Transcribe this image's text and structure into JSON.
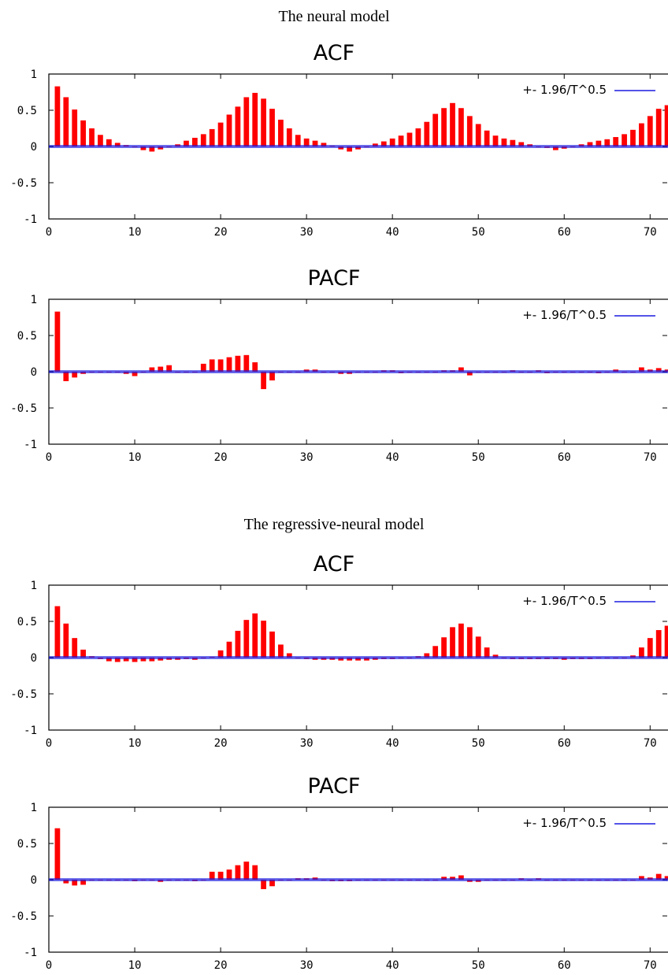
{
  "sections": [
    {
      "title": "The neural model"
    },
    {
      "title": "The regressive-neural model"
    }
  ],
  "colors": {
    "bar": "#ff0000",
    "band": "#1c1ce0",
    "axis": "#000000"
  },
  "chart_data": [
    {
      "type": "bar",
      "title": "ACF",
      "legend": "+- 1.96/T^0.5",
      "legend_position": "top-right",
      "ylim": [
        -1,
        1
      ],
      "xlim": [
        0,
        73
      ],
      "yticks": [
        "1",
        "0.5",
        "0",
        "-0.5",
        "-1"
      ],
      "xticks": [
        "0",
        "10",
        "20",
        "30",
        "40",
        "50",
        "60",
        "70"
      ],
      "band": 0.012,
      "x": [
        1,
        2,
        3,
        4,
        5,
        6,
        7,
        8,
        9,
        10,
        11,
        12,
        13,
        14,
        15,
        16,
        17,
        18,
        19,
        20,
        21,
        22,
        23,
        24,
        25,
        26,
        27,
        28,
        29,
        30,
        31,
        32,
        33,
        34,
        35,
        36,
        37,
        38,
        39,
        40,
        41,
        42,
        43,
        44,
        45,
        46,
        47,
        48,
        49,
        50,
        51,
        52,
        53,
        54,
        55,
        56,
        57,
        58,
        59,
        60,
        61,
        62,
        63,
        64,
        65,
        66,
        67,
        68,
        69,
        70,
        71,
        72
      ],
      "values": [
        0.83,
        0.68,
        0.51,
        0.36,
        0.25,
        0.16,
        0.1,
        0.05,
        0.02,
        0.0,
        -0.05,
        -0.07,
        -0.04,
        0.0,
        0.03,
        0.08,
        0.12,
        0.17,
        0.24,
        0.33,
        0.44,
        0.55,
        0.68,
        0.74,
        0.66,
        0.52,
        0.37,
        0.25,
        0.16,
        0.11,
        0.08,
        0.05,
        0.01,
        -0.04,
        -0.07,
        -0.04,
        0.0,
        0.04,
        0.07,
        0.11,
        0.15,
        0.19,
        0.25,
        0.34,
        0.45,
        0.53,
        0.6,
        0.53,
        0.42,
        0.31,
        0.22,
        0.15,
        0.11,
        0.09,
        0.06,
        0.03,
        0.0,
        -0.02,
        -0.05,
        -0.03,
        0.0,
        0.03,
        0.06,
        0.08,
        0.1,
        0.13,
        0.17,
        0.23,
        0.32,
        0.42,
        0.52,
        0.57
      ]
    },
    {
      "type": "bar",
      "title": "PACF",
      "legend": "+- 1.96/T^0.5",
      "legend_position": "top-right",
      "ylim": [
        -1,
        1
      ],
      "xlim": [
        0,
        73
      ],
      "yticks": [
        "1",
        "0.5",
        "0",
        "-0.5",
        "-1"
      ],
      "xticks": [
        "0",
        "10",
        "20",
        "30",
        "40",
        "50",
        "60",
        "70"
      ],
      "band": 0.012,
      "x": [
        1,
        2,
        3,
        4,
        5,
        6,
        7,
        8,
        9,
        10,
        11,
        12,
        13,
        14,
        15,
        16,
        17,
        18,
        19,
        20,
        21,
        22,
        23,
        24,
        25,
        26,
        27,
        28,
        29,
        30,
        31,
        32,
        33,
        34,
        35,
        36,
        37,
        38,
        39,
        40,
        41,
        42,
        43,
        44,
        45,
        46,
        47,
        48,
        49,
        50,
        51,
        52,
        53,
        54,
        55,
        56,
        57,
        58,
        59,
        60,
        61,
        62,
        63,
        64,
        65,
        66,
        67,
        68,
        69,
        70,
        71,
        72
      ],
      "values": [
        0.83,
        -0.13,
        -0.08,
        -0.03,
        0.0,
        0.0,
        0.0,
        0.0,
        -0.03,
        -0.06,
        0.0,
        0.06,
        0.07,
        0.09,
        0.0,
        0.0,
        0.0,
        0.11,
        0.17,
        0.17,
        0.2,
        0.22,
        0.23,
        0.13,
        -0.24,
        -0.12,
        0.0,
        0.0,
        0.0,
        0.03,
        0.03,
        0.0,
        0.0,
        -0.03,
        -0.03,
        0.0,
        0.0,
        0.0,
        0.02,
        0.02,
        -0.02,
        0.0,
        0.0,
        0.0,
        0.0,
        0.02,
        0.02,
        0.06,
        -0.05,
        0.0,
        0.0,
        0.0,
        0.0,
        0.02,
        0.0,
        0.0,
        0.02,
        -0.02,
        0.0,
        0.0,
        0.0,
        0.0,
        0.0,
        -0.02,
        0.0,
        0.03,
        0.0,
        0.0,
        0.06,
        0.03,
        0.05,
        0.03
      ]
    },
    {
      "type": "bar",
      "title": "ACF",
      "legend": "+- 1.96/T^0.5",
      "legend_position": "top-right",
      "ylim": [
        -1,
        1
      ],
      "xlim": [
        0,
        73
      ],
      "yticks": [
        "1",
        "0.5",
        "0",
        "-0.5",
        "-1"
      ],
      "xticks": [
        "0",
        "10",
        "20",
        "30",
        "40",
        "50",
        "60",
        "70"
      ],
      "band": 0.012,
      "x": [
        1,
        2,
        3,
        4,
        5,
        6,
        7,
        8,
        9,
        10,
        11,
        12,
        13,
        14,
        15,
        16,
        17,
        18,
        19,
        20,
        21,
        22,
        23,
        24,
        25,
        26,
        27,
        28,
        29,
        30,
        31,
        32,
        33,
        34,
        35,
        36,
        37,
        38,
        39,
        40,
        41,
        42,
        43,
        44,
        45,
        46,
        47,
        48,
        49,
        50,
        51,
        52,
        53,
        54,
        55,
        56,
        57,
        58,
        59,
        60,
        61,
        62,
        63,
        64,
        65,
        66,
        67,
        68,
        69,
        70,
        71,
        72
      ],
      "values": [
        0.71,
        0.47,
        0.27,
        0.11,
        0.02,
        -0.02,
        -0.05,
        -0.06,
        -0.05,
        -0.06,
        -0.05,
        -0.05,
        -0.04,
        -0.03,
        -0.03,
        -0.02,
        -0.03,
        -0.01,
        0.01,
        0.1,
        0.22,
        0.37,
        0.52,
        0.61,
        0.51,
        0.36,
        0.18,
        0.06,
        0.0,
        -0.02,
        -0.03,
        -0.03,
        -0.03,
        -0.04,
        -0.04,
        -0.04,
        -0.04,
        -0.03,
        -0.02,
        -0.02,
        -0.01,
        -0.01,
        0.02,
        0.06,
        0.16,
        0.28,
        0.42,
        0.47,
        0.42,
        0.29,
        0.14,
        0.04,
        -0.01,
        -0.02,
        -0.02,
        -0.02,
        -0.02,
        -0.02,
        -0.02,
        -0.03,
        -0.02,
        -0.02,
        -0.02,
        -0.01,
        -0.01,
        -0.01,
        0.0,
        0.03,
        0.14,
        0.27,
        0.38,
        0.44
      ]
    },
    {
      "type": "bar",
      "title": "PACF",
      "legend": "+- 1.96/T^0.5",
      "legend_position": "top-right",
      "ylim": [
        -1,
        1
      ],
      "xlim": [
        0,
        73
      ],
      "yticks": [
        "1",
        "0.5",
        "0",
        "-0.5",
        "-1"
      ],
      "xticks": [
        "0",
        "10",
        "20",
        "30",
        "40",
        "50",
        "60",
        "70"
      ],
      "band": 0.012,
      "x": [
        1,
        2,
        3,
        4,
        5,
        6,
        7,
        8,
        9,
        10,
        11,
        12,
        13,
        14,
        15,
        16,
        17,
        18,
        19,
        20,
        21,
        22,
        23,
        24,
        25,
        26,
        27,
        28,
        29,
        30,
        31,
        32,
        33,
        34,
        35,
        36,
        37,
        38,
        39,
        40,
        41,
        42,
        43,
        44,
        45,
        46,
        47,
        48,
        49,
        50,
        51,
        52,
        53,
        54,
        55,
        56,
        57,
        58,
        59,
        60,
        61,
        62,
        63,
        64,
        65,
        66,
        67,
        68,
        69,
        70,
        71,
        72
      ],
      "values": [
        0.71,
        -0.05,
        -0.08,
        -0.07,
        0.0,
        0.0,
        0.0,
        0.0,
        0.0,
        -0.02,
        0.0,
        0.0,
        -0.03,
        0.0,
        0.0,
        0.0,
        -0.02,
        0.0,
        0.11,
        0.11,
        0.14,
        0.2,
        0.25,
        0.2,
        -0.13,
        -0.09,
        0.0,
        0.0,
        0.02,
        0.02,
        0.03,
        0.0,
        -0.02,
        -0.02,
        -0.02,
        0.0,
        0.0,
        0.0,
        0.0,
        0.0,
        0.0,
        0.0,
        0.0,
        0.0,
        0.0,
        0.04,
        0.04,
        0.06,
        -0.03,
        -0.03,
        0.0,
        0.0,
        0.0,
        0.0,
        0.02,
        0.0,
        0.02,
        0.0,
        0.0,
        0.0,
        0.0,
        0.0,
        0.0,
        0.0,
        0.0,
        0.0,
        0.0,
        0.0,
        0.05,
        0.03,
        0.08,
        0.05
      ]
    }
  ]
}
